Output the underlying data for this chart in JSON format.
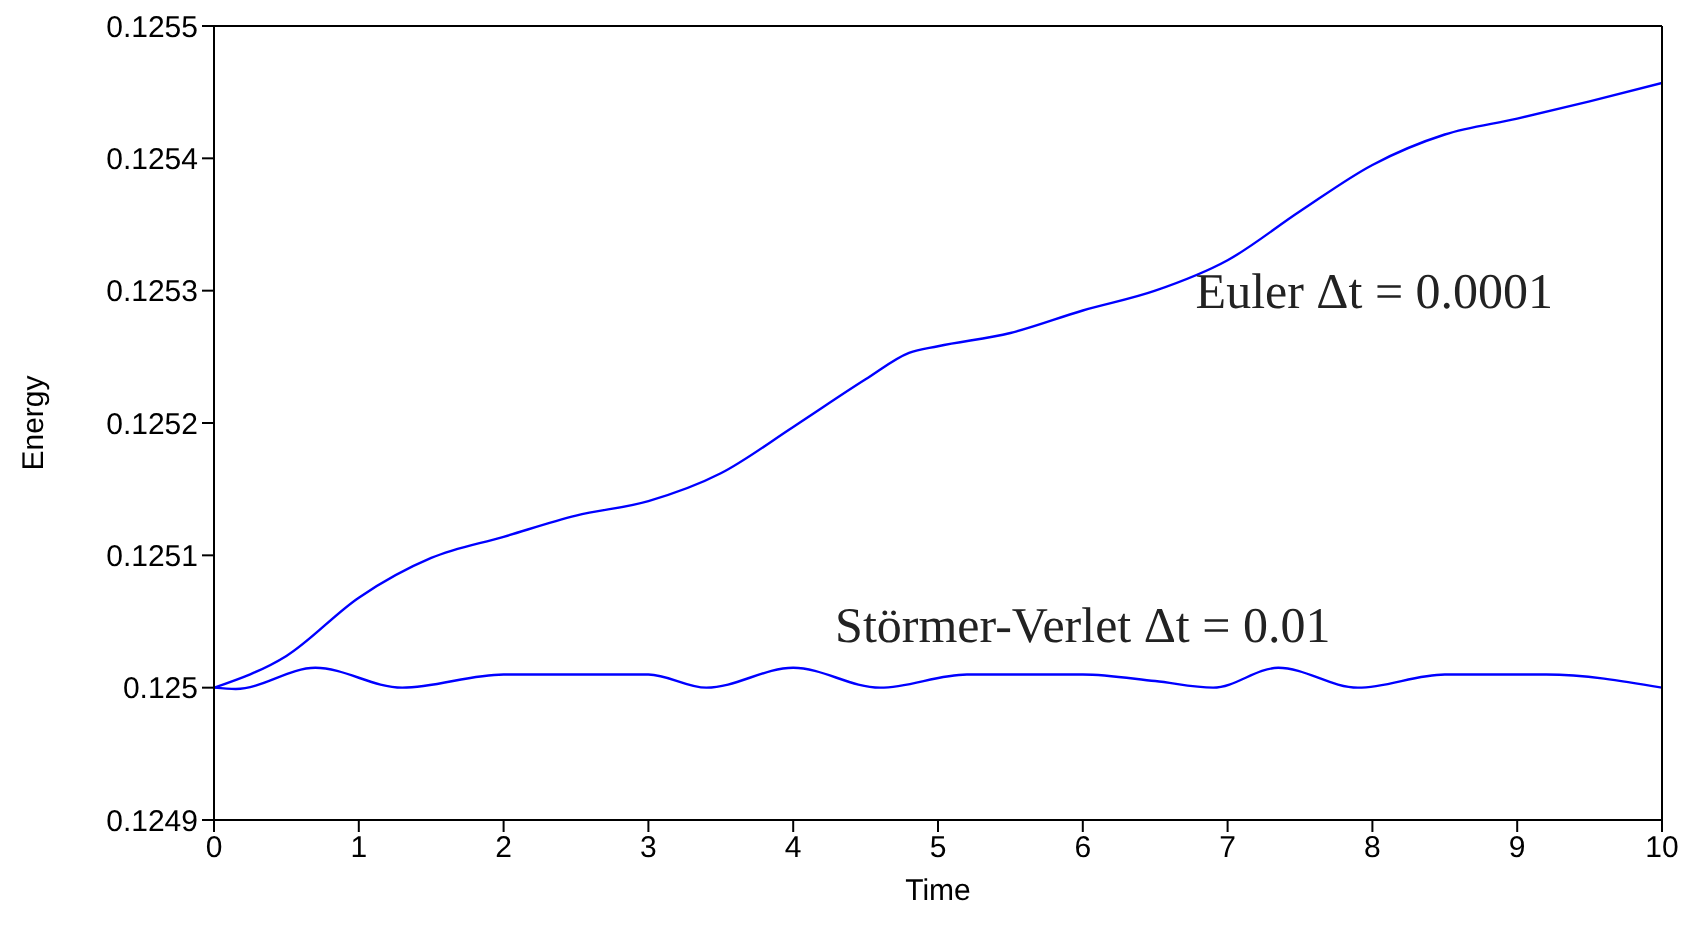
{
  "chart_data": {
    "type": "line",
    "xlabel": "Time",
    "ylabel": "Energy",
    "xlim": [
      0,
      10
    ],
    "xticks": [
      0,
      1,
      2,
      3,
      4,
      5,
      6,
      7,
      8,
      9,
      10
    ],
    "ylim": [
      0.1249,
      0.1255
    ],
    "yticks": [
      0.1249,
      0.125,
      0.1251,
      0.1252,
      0.1253,
      0.1254,
      0.1255
    ],
    "grid": false,
    "legend": false,
    "marker": "none",
    "line_style": "solid",
    "series": [
      {
        "name": "Euler Δt = 0.0001",
        "color": "#0000ff",
        "x": [
          0,
          0.5,
          1,
          1.5,
          2,
          2.5,
          3,
          3.5,
          4,
          4.5,
          4.8,
          5,
          5.5,
          6,
          6.5,
          7,
          7.5,
          8,
          8.5,
          9,
          9.5,
          10
        ],
        "values": [
          0.125,
          0.125024,
          0.125068,
          0.125098,
          0.125114,
          0.12513,
          0.125141,
          0.125162,
          0.125197,
          0.125233,
          0.125253,
          0.125258,
          0.125268,
          0.125285,
          0.1253,
          0.125323,
          0.12536,
          0.125395,
          0.125418,
          0.12543,
          0.125443,
          0.125457
        ]
      },
      {
        "name": "Störmer-Verlet Δt = 0.01",
        "color": "#0000ff",
        "x": [
          0,
          0.15,
          0.7,
          1.3,
          2,
          2.5,
          3,
          3.4,
          4,
          4.6,
          5.2,
          6,
          6.5,
          6.9,
          7.35,
          7.9,
          8.5,
          9.2,
          10
        ],
        "values": [
          0.125,
          0.124999,
          0.125015,
          0.125,
          0.12501,
          0.12501,
          0.12501,
          0.125,
          0.125015,
          0.125,
          0.12501,
          0.12501,
          0.125005,
          0.125,
          0.125015,
          0.125,
          0.12501,
          0.12501,
          0.125
        ]
      }
    ]
  }
}
